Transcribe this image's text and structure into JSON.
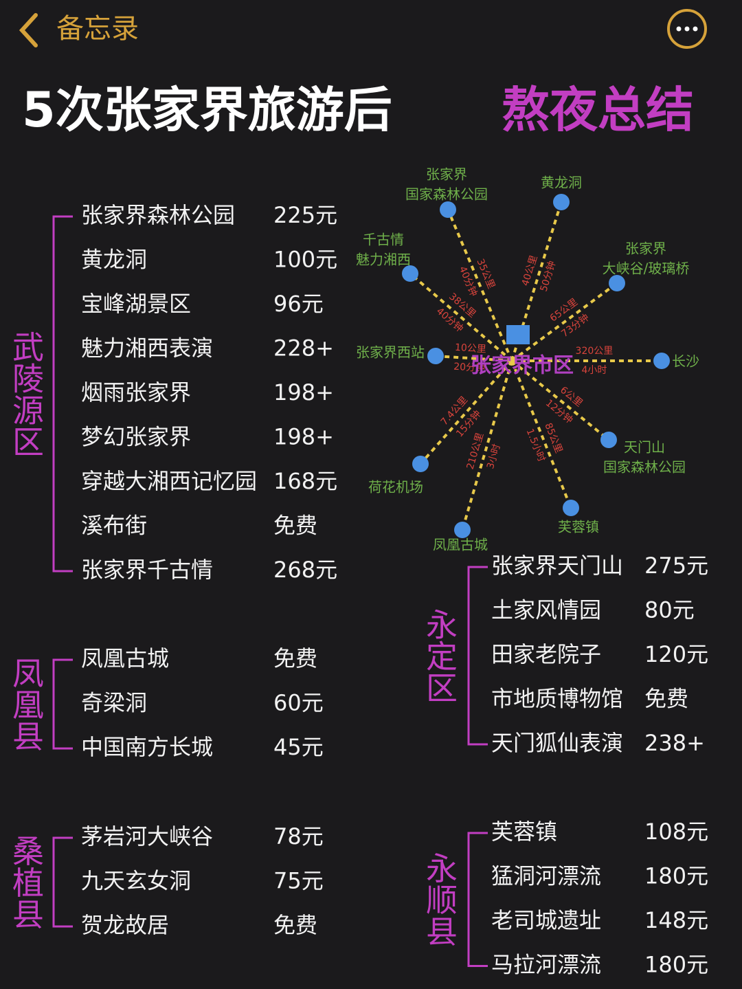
{
  "header": {
    "back": "备忘录"
  },
  "title": {
    "main": "5次张家界旅游后",
    "highlight": "熬夜总结"
  },
  "map": {
    "center": "张家界市区",
    "destinations": [
      {
        "label": [
          "张家界",
          "国家森林公园"
        ],
        "distance": "35公里",
        "time": "40分钟"
      },
      {
        "label": [
          "黄龙洞"
        ],
        "distance": "40公里",
        "time": "50分钟"
      },
      {
        "label": [
          "千古情",
          "魅力湘西"
        ],
        "distance": "38公里",
        "time": "40分钟"
      },
      {
        "label": [
          "张家界",
          "大峡谷/玻璃桥"
        ],
        "distance": "65公里",
        "time": "73分钟"
      },
      {
        "label": [
          "张家界西站"
        ],
        "distance": "10公里",
        "time": "20分钟"
      },
      {
        "label": [
          "长沙"
        ],
        "distance": "320公里",
        "time": "4小时"
      },
      {
        "label": [
          "天门山",
          "国家森林公园"
        ],
        "distance": "6公里",
        "time": "12分钟"
      },
      {
        "label": [
          "荷花机场"
        ],
        "distance": "7.4公里",
        "time": "15分钟"
      },
      {
        "label": [
          "凤凰古城"
        ],
        "distance": "210公里",
        "time": "3小时"
      },
      {
        "label": [
          "芙蓉镇"
        ],
        "distance": "85公里",
        "time": "1.5小时"
      }
    ]
  },
  "regions": [
    {
      "name": "武陵源区",
      "items": [
        {
          "name": "张家界森林公园",
          "price": "225元"
        },
        {
          "name": "黄龙洞",
          "price": "100元"
        },
        {
          "name": "宝峰湖景区",
          "price": "96元"
        },
        {
          "name": "魅力湘西表演",
          "price": "228+"
        },
        {
          "name": "烟雨张家界",
          "price": "198+"
        },
        {
          "name": "梦幻张家界",
          "price": "198+"
        },
        {
          "name": "穿越大湘西记忆园",
          "price": "168元"
        },
        {
          "name": "溪布街",
          "price": "免费"
        },
        {
          "name": "张家界千古情",
          "price": "268元"
        }
      ]
    },
    {
      "name": "凤凰县",
      "items": [
        {
          "name": "凤凰古城",
          "price": "免费"
        },
        {
          "name": "奇梁洞",
          "price": "60元"
        },
        {
          "name": "中国南方长城",
          "price": "45元"
        }
      ]
    },
    {
      "name": "桑植县",
      "items": [
        {
          "name": "茅岩河大峡谷",
          "price": "78元"
        },
        {
          "name": "九天玄女洞",
          "price": "75元"
        },
        {
          "name": "贺龙故居",
          "price": "免费"
        }
      ]
    },
    {
      "name": "永定区",
      "items": [
        {
          "name": "张家界天门山",
          "price": "275元"
        },
        {
          "name": "土家风情园",
          "price": "80元"
        },
        {
          "name": "田家老院子",
          "price": "120元"
        },
        {
          "name": "市地质博物馆",
          "price": "免费"
        },
        {
          "name": "天门狐仙表演",
          "price": "238+"
        }
      ]
    },
    {
      "name": "永顺县",
      "items": [
        {
          "name": "芙蓉镇",
          "price": "108元"
        },
        {
          "name": "猛洞河漂流",
          "price": "180元"
        },
        {
          "name": "老司城遗址",
          "price": "148元"
        },
        {
          "name": "马拉河漂流",
          "price": "180元"
        }
      ]
    }
  ]
}
